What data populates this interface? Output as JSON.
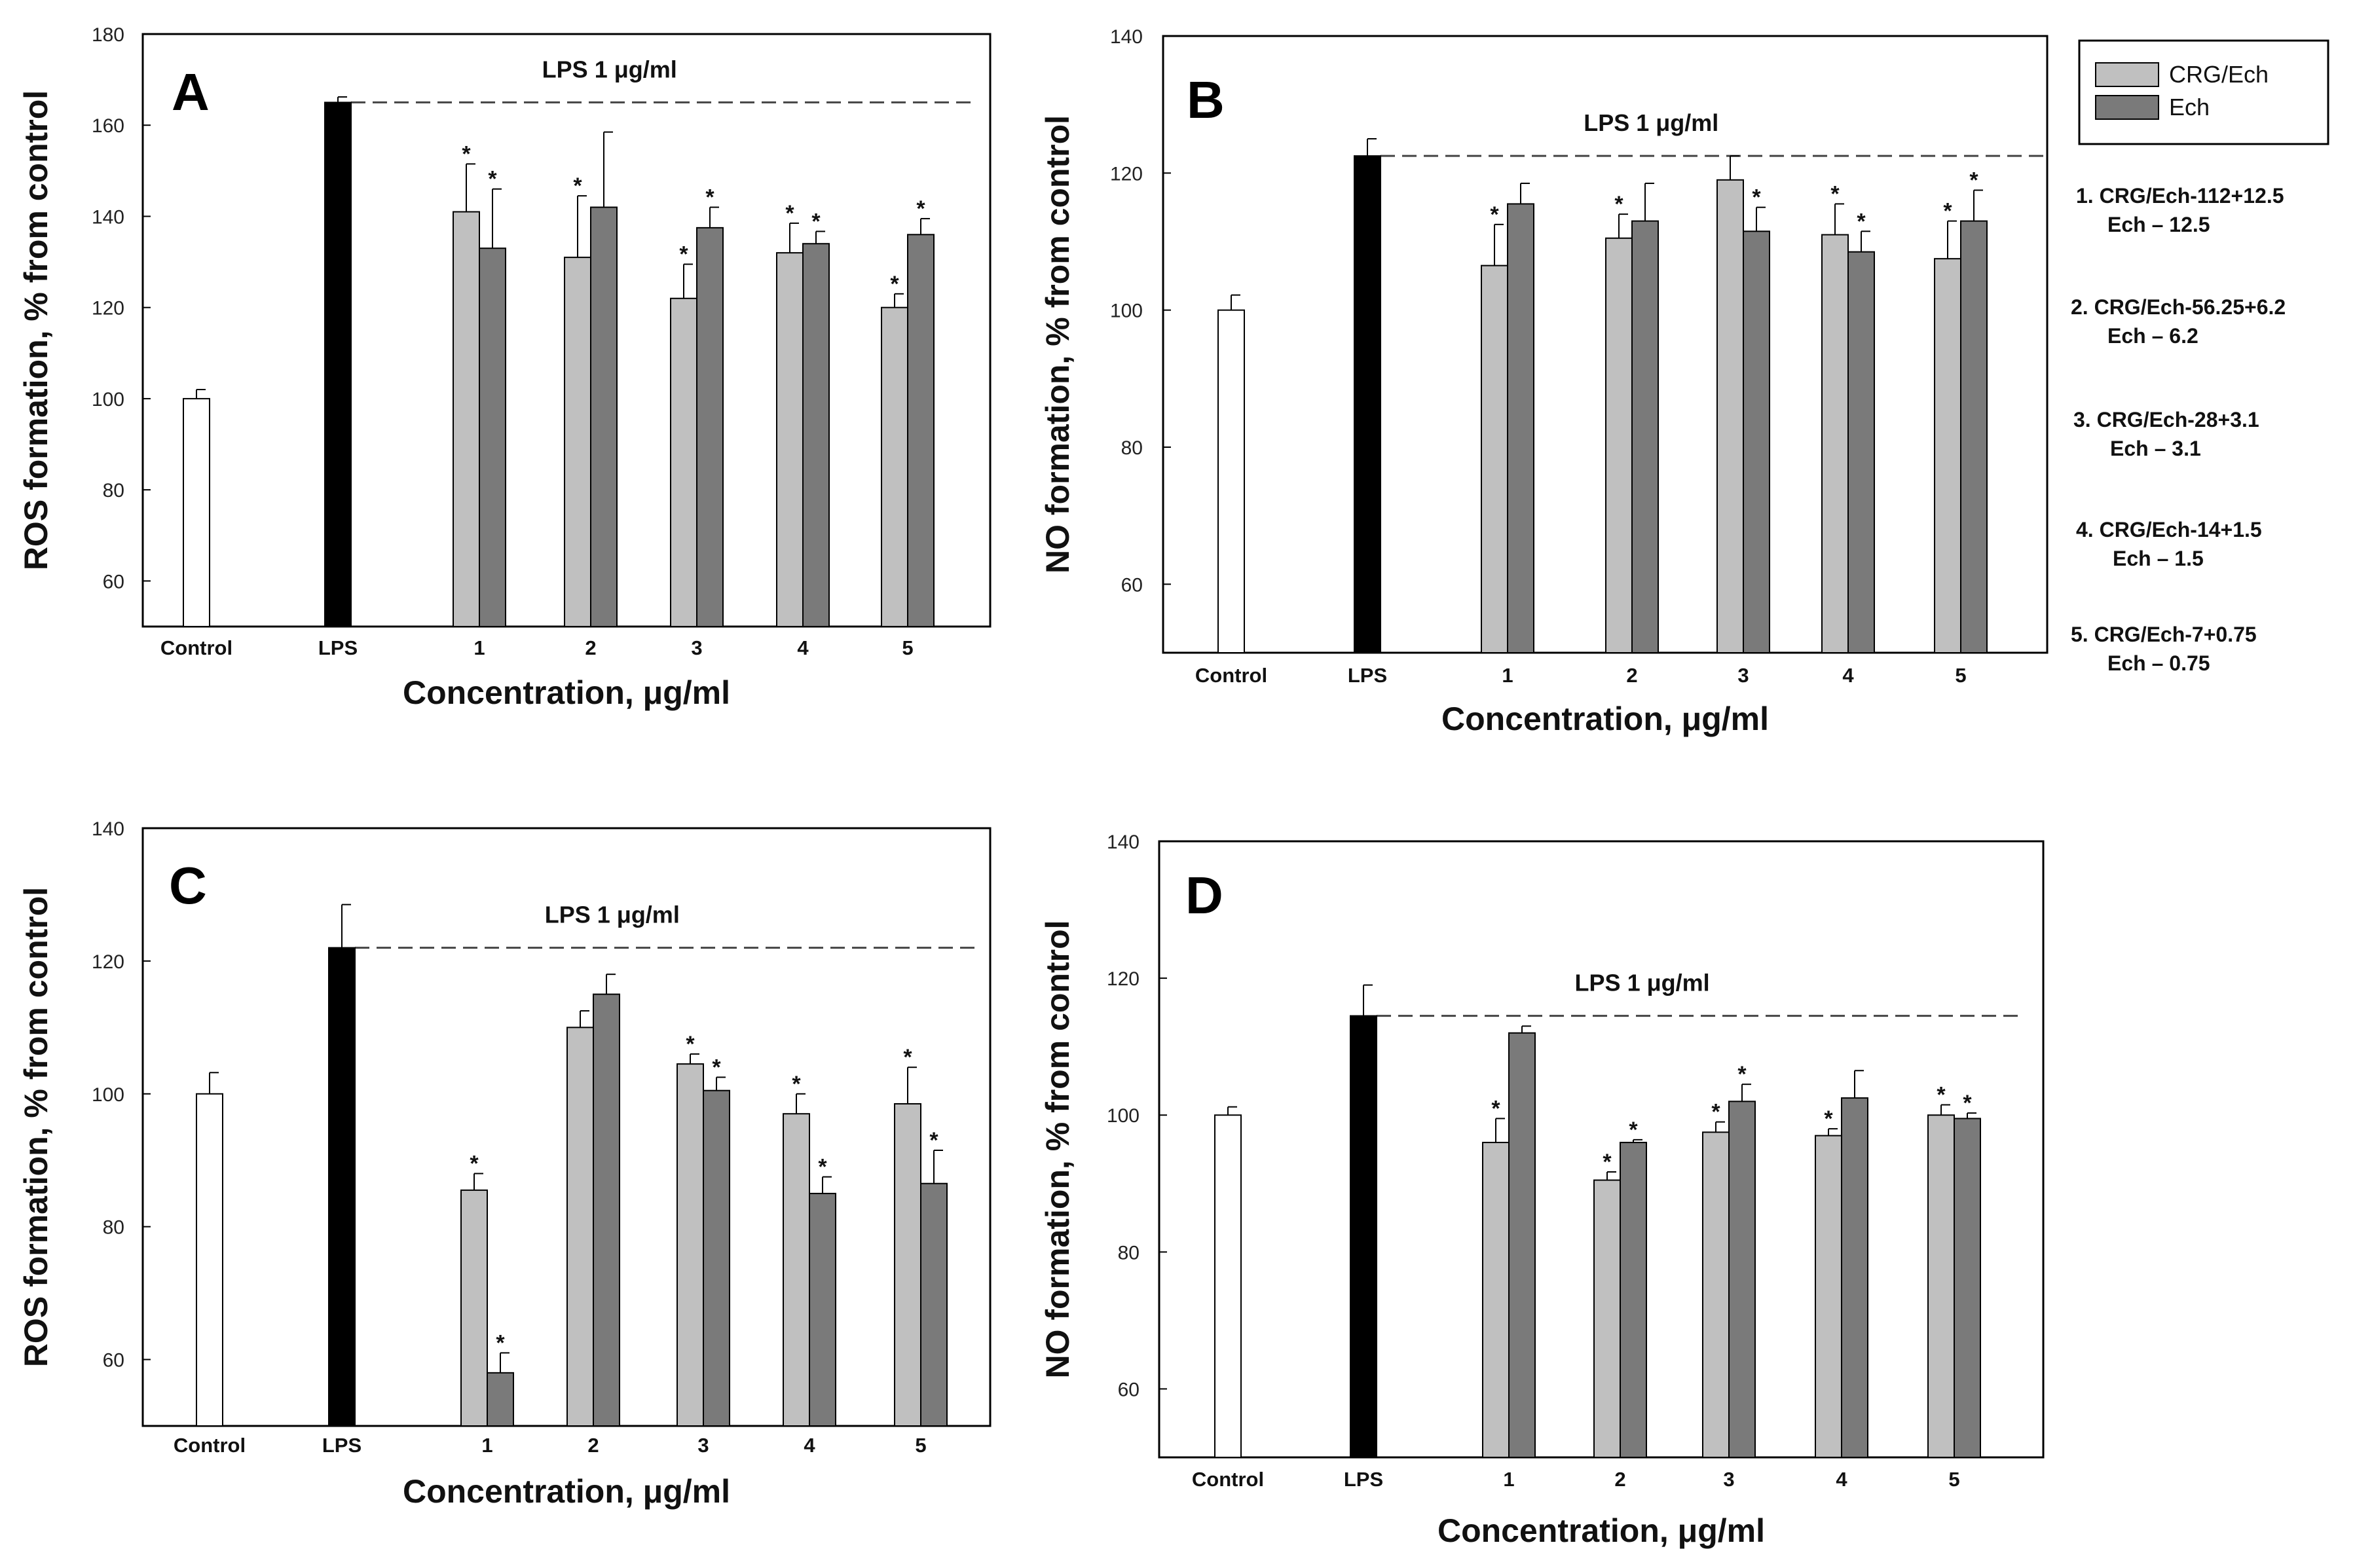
{
  "legend": {
    "entries": [
      {
        "name": "CRG/Ech",
        "color": "#c0c0c0"
      },
      {
        "name": "Ech",
        "color": "#7a7a7a"
      }
    ]
  },
  "notes": [
    {
      "line1": "1. CRG/Ech-112+12.5",
      "line2": "Ech – 12.5"
    },
    {
      "line1": "2. CRG/Ech-56.25+6.2",
      "line2": "Ech – 6.2"
    },
    {
      "line1": "3. CRG/Ech-28+3.1",
      "line2": "Ech – 3.1"
    },
    {
      "line1": "4. CRG/Ech-14+1.5",
      "line2": "Ech – 1.5"
    },
    {
      "line1": "5. CRG/Ech-7+0.75",
      "line2": "Ech – 0.75"
    }
  ],
  "colors": {
    "control": "#ffffff",
    "lps": "#000000",
    "crg": "#c0c0c0",
    "ech": "#7a7a7a"
  },
  "chart_data": [
    {
      "panel": "A",
      "type": "bar",
      "ylabel": "ROS formation, % from control",
      "xlabel": "Concentration, μg/ml",
      "ylim": [
        50,
        180
      ],
      "yticks": [
        60,
        80,
        100,
        120,
        140,
        160,
        180
      ],
      "control": {
        "label": "Control",
        "value": 100,
        "err": 2
      },
      "lps": {
        "label": "LPS",
        "value": 165,
        "err": 1.2
      },
      "lps_line_label": "LPS 1 μg/ml",
      "categories": [
        "1",
        "2",
        "3",
        "4",
        "5"
      ],
      "series": [
        {
          "name": "CRG/Ech",
          "values": [
            141,
            131,
            122,
            132,
            120
          ],
          "errors": [
            10.5,
            13.5,
            7.5,
            6.5,
            3
          ],
          "sig": [
            true,
            true,
            true,
            true,
            true
          ]
        },
        {
          "name": "Ech",
          "values": [
            133,
            142,
            137.5,
            134,
            136
          ],
          "errors": [
            13,
            16.5,
            4.5,
            2.7,
            3.5
          ],
          "sig": [
            true,
            false,
            true,
            true,
            true
          ]
        }
      ]
    },
    {
      "panel": "B",
      "type": "bar",
      "ylabel": "NO formation, % from control",
      "xlabel": "Concentration, μg/ml",
      "ylim": [
        50,
        140
      ],
      "yticks": [
        60,
        80,
        100,
        120,
        140
      ],
      "control": {
        "label": "Control",
        "value": 100,
        "err": 2.2
      },
      "lps": {
        "label": "LPS",
        "value": 122.5,
        "err": 2.5
      },
      "lps_line_label": "LPS 1 μg/ml",
      "categories": [
        "1",
        "2",
        "3",
        "4",
        "5"
      ],
      "series": [
        {
          "name": "CRG/Ech",
          "values": [
            106.5,
            110.5,
            119,
            111,
            107.5
          ],
          "errors": [
            6,
            3.5,
            3.5,
            4.5,
            5.5
          ],
          "sig": [
            true,
            true,
            false,
            true,
            true
          ]
        },
        {
          "name": "Ech",
          "values": [
            115.5,
            113,
            111.5,
            108.5,
            113
          ],
          "errors": [
            3,
            5.5,
            3.5,
            3,
            4.5
          ],
          "sig": [
            false,
            false,
            true,
            true,
            true
          ]
        }
      ]
    },
    {
      "panel": "C",
      "type": "bar",
      "ylabel": "ROS formation, % from control",
      "xlabel": "Concentration, μg/ml",
      "ylim": [
        50,
        140
      ],
      "yticks": [
        60,
        80,
        100,
        120,
        140
      ],
      "control": {
        "label": "Control",
        "value": 100,
        "err": 3.2
      },
      "lps": {
        "label": "LPS",
        "value": 122,
        "err": 6.5
      },
      "lps_line_label": "LPS 1 μg/ml",
      "categories": [
        "1",
        "2",
        "3",
        "4",
        "5"
      ],
      "series": [
        {
          "name": "CRG/Ech",
          "values": [
            85.5,
            110,
            104.5,
            97,
            98.5
          ],
          "errors": [
            2.5,
            2.5,
            1.5,
            3,
            5.5
          ],
          "sig": [
            true,
            false,
            true,
            true,
            true
          ]
        },
        {
          "name": "Ech",
          "values": [
            58,
            115,
            100.5,
            85,
            86.5
          ],
          "errors": [
            3,
            3,
            2,
            2.5,
            5
          ],
          "sig": [
            true,
            false,
            true,
            true,
            true
          ]
        }
      ]
    },
    {
      "panel": "D",
      "type": "bar",
      "ylabel": "NO formation, % from control",
      "xlabel": "Concentration, μg/ml",
      "ylim": [
        50,
        140
      ],
      "yticks": [
        60,
        80,
        100,
        120,
        140
      ],
      "control": {
        "label": "Control",
        "value": 100,
        "err": 1.2
      },
      "lps": {
        "label": "LPS",
        "value": 114.5,
        "err": 4.5
      },
      "lps_line_label": "LPS 1 μg/ml",
      "categories": [
        "1",
        "2",
        "3",
        "4",
        "5"
      ],
      "series": [
        {
          "name": "CRG/Ech",
          "values": [
            96,
            90.5,
            97.5,
            97,
            100
          ],
          "errors": [
            3.5,
            1.2,
            1.5,
            1,
            1.5
          ],
          "sig": [
            true,
            true,
            true,
            true,
            true
          ]
        },
        {
          "name": "Ech",
          "values": [
            112,
            96,
            102,
            102.5,
            99.5
          ],
          "errors": [
            1,
            0.4,
            2.5,
            4,
            0.8
          ],
          "sig": [
            false,
            true,
            true,
            false,
            true
          ]
        }
      ]
    }
  ]
}
